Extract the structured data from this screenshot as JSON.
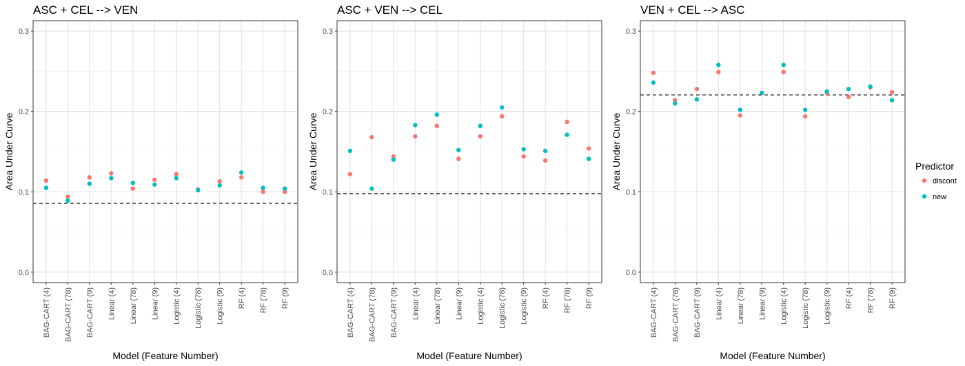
{
  "chart_data": [
    {
      "type": "scatter",
      "title": "ASC + CEL --> VEN",
      "xlabel": "Model (Feature Number)",
      "ylabel": "Area Under Curve",
      "ylim": [
        -0.013,
        0.313
      ],
      "yticks": [
        "0.0",
        "0.1",
        "0.2",
        "0.3"
      ],
      "categories": [
        "BAG-CART (4)",
        "BAG-CART (78)",
        "BAG-CART (9)",
        "Linear (4)",
        "Linear (78)",
        "Linear (9)",
        "Logistic (4)",
        "Logistic (78)",
        "Logistic (9)",
        "RF (4)",
        "RF (78)",
        "RF (9)"
      ],
      "series": [
        {
          "name": "discont",
          "values": [
            0.114,
            0.094,
            0.118,
            0.123,
            0.104,
            0.115,
            0.122,
            0.103,
            0.113,
            0.118,
            0.1,
            0.1
          ]
        },
        {
          "name": "new",
          "values": [
            0.105,
            0.089,
            0.11,
            0.117,
            0.111,
            0.109,
            0.117,
            0.102,
            0.108,
            0.124,
            0.105,
            0.104
          ]
        }
      ],
      "reference_line": 0.0856,
      "grid": true
    },
    {
      "type": "scatter",
      "title": "ASC + VEN --> CEL",
      "xlabel": "Model (Feature Number)",
      "ylabel": "Area Under Curve",
      "ylim": [
        -0.013,
        0.313
      ],
      "yticks": [
        "0.0",
        "0.1",
        "0.2",
        "0.3"
      ],
      "categories": [
        "BAG-CART (4)",
        "BAG-CART (78)",
        "BAG-CART (9)",
        "Linear (4)",
        "Linear (78)",
        "Linear (9)",
        "Logistic (4)",
        "Logistic (78)",
        "Logistic (9)",
        "RF (4)",
        "RF (78)",
        "RF (9)"
      ],
      "series": [
        {
          "name": "discont",
          "values": [
            0.122,
            0.168,
            0.144,
            0.169,
            0.182,
            0.141,
            0.169,
            0.194,
            0.144,
            0.139,
            0.187,
            0.154
          ]
        },
        {
          "name": "new",
          "values": [
            0.151,
            0.104,
            0.14,
            0.183,
            0.196,
            0.152,
            0.182,
            0.205,
            0.153,
            0.151,
            0.171,
            0.141
          ]
        }
      ],
      "reference_line": 0.0977,
      "grid": true
    },
    {
      "type": "scatter",
      "title": "VEN + CEL --> ASC",
      "xlabel": "Model (Feature Number)",
      "ylabel": "Area Under Curve",
      "ylim": [
        -0.013,
        0.313
      ],
      "yticks": [
        "0.0",
        "0.1",
        "0.2",
        "0.3"
      ],
      "categories": [
        "BAG-CART (4)",
        "BAG-CART (78)",
        "BAG-CART (9)",
        "Linear (4)",
        "Linear (78)",
        "Linear (9)",
        "Logistic (4)",
        "Logistic (78)",
        "Logistic (9)",
        "RF (4)",
        "RF (78)",
        "RF (9)"
      ],
      "series": [
        {
          "name": "discont",
          "values": [
            0.248,
            0.214,
            0.228,
            0.249,
            0.195,
            0.223,
            0.249,
            0.194,
            0.223,
            0.218,
            0.23,
            0.224
          ]
        },
        {
          "name": "new",
          "values": [
            0.236,
            0.21,
            0.215,
            0.258,
            0.202,
            0.223,
            0.258,
            0.202,
            0.225,
            0.228,
            0.231,
            0.214
          ]
        }
      ],
      "reference_line": 0.2205,
      "grid": true
    }
  ],
  "legend": {
    "title": "Predictor",
    "placement": "right",
    "entries": [
      {
        "label": "discont",
        "color": "#F8766D"
      },
      {
        "label": "new",
        "color": "#00BFC4"
      }
    ]
  },
  "colors": {
    "discont": "#F8766D",
    "new": "#00BFC4"
  }
}
